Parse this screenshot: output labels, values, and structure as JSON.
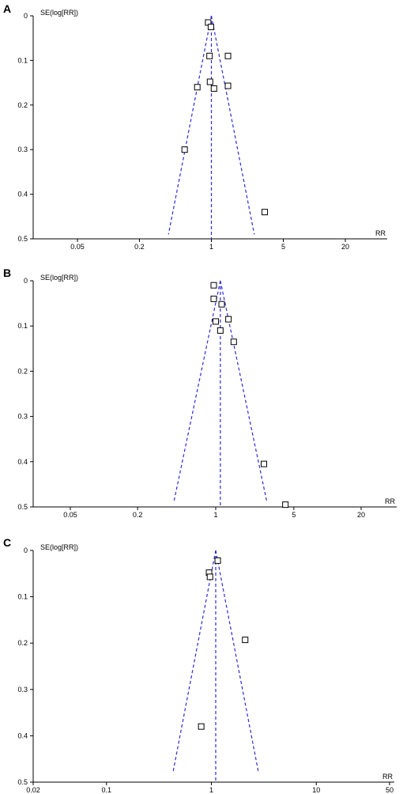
{
  "colors": {
    "funnel": "#2b2bd6",
    "axis": "#000000",
    "marker_stroke": "#000000",
    "marker_fill": "#ffffff"
  },
  "chart_data": [
    {
      "type": "scatter",
      "panel": "A",
      "x_scale": "log",
      "xlabel": "RR",
      "ylabel": "SE(log[RR])",
      "xlim": [
        0.02,
        35
      ],
      "ylim": [
        0,
        0.5
      ],
      "y_inverted": true,
      "xticks": [
        0.05,
        0.2,
        1,
        5,
        20
      ],
      "xtick_labels": [
        "0.05",
        "0.2",
        "1",
        "5",
        "20"
      ],
      "yticks": [
        0,
        0.1,
        0.2,
        0.3,
        0.4,
        0.5
      ],
      "ytick_labels": [
        "0",
        "0.1",
        "0.2",
        "0.3",
        "0.4",
        "0.5"
      ],
      "pooled_rr": 1.0,
      "funnel_base_se": 0.49,
      "points": [
        {
          "x": 0.93,
          "y": 0.015
        },
        {
          "x": 0.99,
          "y": 0.025
        },
        {
          "x": 0.96,
          "y": 0.09
        },
        {
          "x": 1.45,
          "y": 0.09
        },
        {
          "x": 0.97,
          "y": 0.148
        },
        {
          "x": 0.73,
          "y": 0.16
        },
        {
          "x": 1.06,
          "y": 0.163
        },
        {
          "x": 1.45,
          "y": 0.157
        },
        {
          "x": 0.55,
          "y": 0.3
        },
        {
          "x": 3.3,
          "y": 0.44
        }
      ]
    },
    {
      "type": "scatter",
      "panel": "B",
      "x_scale": "log",
      "xlabel": "RR",
      "ylabel": "SE(log[RR])",
      "xlim": [
        0.02,
        35
      ],
      "ylim": [
        0,
        0.5
      ],
      "y_inverted": true,
      "xticks": [
        0.05,
        0.2,
        1,
        5,
        20
      ],
      "xtick_labels": [
        "0.05",
        "0.2",
        "1",
        "5",
        "20"
      ],
      "yticks": [
        0,
        0.1,
        0.2,
        0.3,
        0.4,
        0.5
      ],
      "ytick_labels": [
        "0",
        "0.1",
        "0.2",
        "0.3",
        "0.4",
        "0.5"
      ],
      "pooled_rr": 1.1,
      "funnel_base_se": 0.49,
      "points": [
        {
          "x": 0.96,
          "y": 0.01
        },
        {
          "x": 0.96,
          "y": 0.04
        },
        {
          "x": 1.13,
          "y": 0.052
        },
        {
          "x": 1.3,
          "y": 0.085
        },
        {
          "x": 1.0,
          "y": 0.09
        },
        {
          "x": 1.1,
          "y": 0.11
        },
        {
          "x": 1.45,
          "y": 0.135
        },
        {
          "x": 2.7,
          "y": 0.405
        },
        {
          "x": 4.2,
          "y": 0.495
        }
      ]
    },
    {
      "type": "scatter",
      "panel": "C",
      "x_scale": "log",
      "xlabel": "RR",
      "ylabel": "SE(log[RR])",
      "xlim": [
        0.02,
        50
      ],
      "ylim": [
        0,
        0.5
      ],
      "y_inverted": true,
      "xticks": [
        0.02,
        0.1,
        1,
        10,
        50
      ],
      "xtick_labels": [
        "0.02",
        "0.1",
        "1",
        "10",
        "50"
      ],
      "yticks": [
        0,
        0.1,
        0.2,
        0.3,
        0.4,
        0.5
      ],
      "ytick_labels": [
        "0",
        "0.1",
        "0.2",
        "0.3",
        "0.4",
        "0.5"
      ],
      "pooled_rr": 1.1,
      "funnel_base_se": 0.48,
      "points": [
        {
          "x": 1.15,
          "y": 0.022
        },
        {
          "x": 0.95,
          "y": 0.048
        },
        {
          "x": 0.97,
          "y": 0.057
        },
        {
          "x": 2.1,
          "y": 0.193
        },
        {
          "x": 0.8,
          "y": 0.38
        }
      ]
    }
  ]
}
